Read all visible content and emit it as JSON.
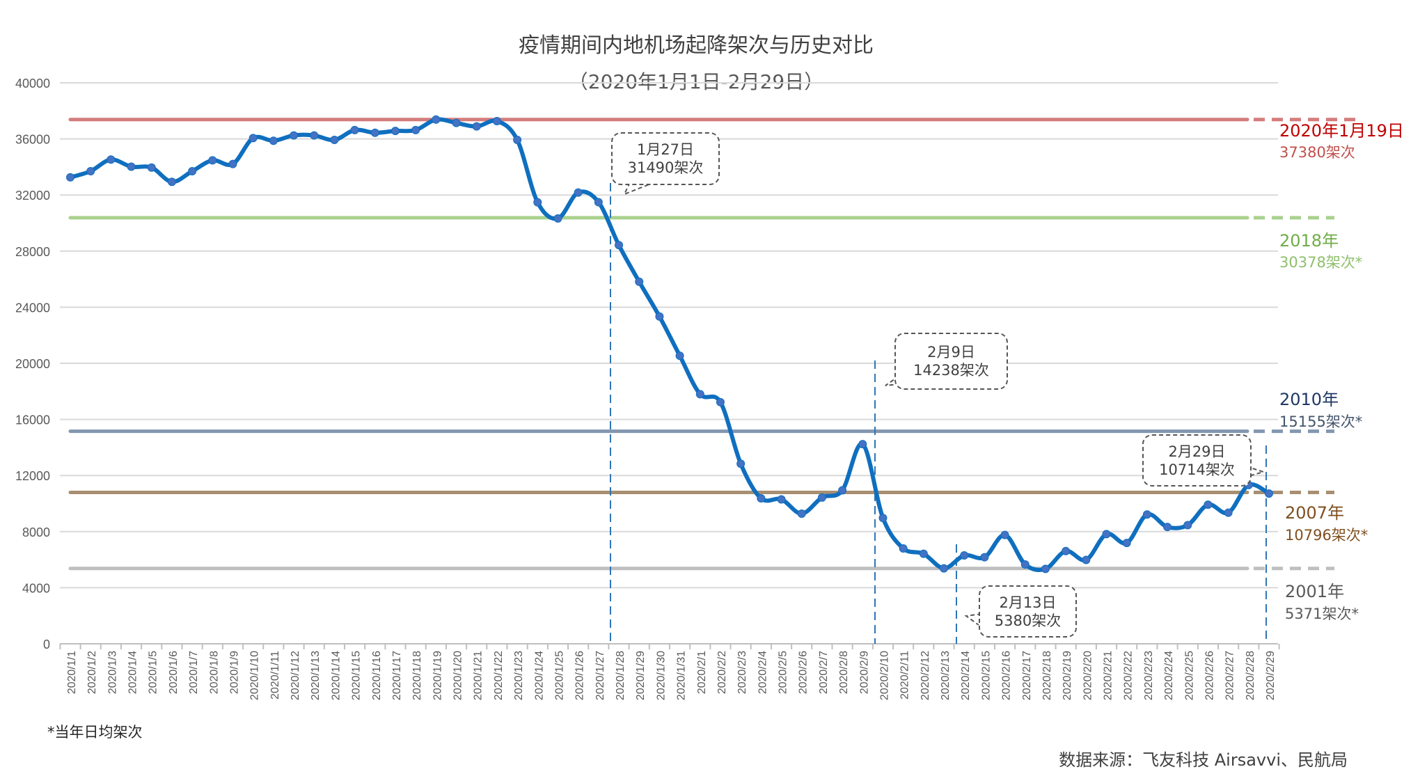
{
  "chart_data": {
    "type": "line",
    "title": "疫情期间内地机场起降架次与历史对比",
    "subtitle": "（2020年1月1日-2月29日）",
    "xlabel": "",
    "ylabel": "",
    "ylim": [
      0,
      40000
    ],
    "yticks": [
      0,
      4000,
      8000,
      12000,
      16000,
      20000,
      24000,
      28000,
      32000,
      36000,
      40000
    ],
    "grid": "horizontal",
    "categories": [
      "2020/1/1",
      "2020/1/2",
      "2020/1/3",
      "2020/1/4",
      "2020/1/5",
      "2020/1/6",
      "2020/1/7",
      "2020/1/8",
      "2020/1/9",
      "2020/1/10",
      "2020/1/11",
      "2020/1/12",
      "2020/1/13",
      "2020/1/14",
      "2020/1/15",
      "2020/1/16",
      "2020/1/17",
      "2020/1/18",
      "2020/1/19",
      "2020/1/20",
      "2020/1/21",
      "2020/1/22",
      "2020/1/23",
      "2020/1/24",
      "2020/1/25",
      "2020/1/26",
      "2020/1/27",
      "2020/1/28",
      "2020/1/29",
      "2020/1/30",
      "2020/1/31",
      "2020/2/1",
      "2020/2/2",
      "2020/2/3",
      "2020/2/4",
      "2020/2/5",
      "2020/2/6",
      "2020/2/7",
      "2020/2/8",
      "2020/2/9",
      "2020/2/10",
      "2020/2/11",
      "2020/2/12",
      "2020/2/13",
      "2020/2/14",
      "2020/2/15",
      "2020/2/16",
      "2020/2/17",
      "2020/2/18",
      "2020/2/19",
      "2020/2/20",
      "2020/2/21",
      "2020/2/22",
      "2020/2/23",
      "2020/2/24",
      "2020/2/25",
      "2020/2/26",
      "2020/2/27",
      "2020/2/28",
      "2020/2/29"
    ],
    "series": [
      {
        "values": [
          33260,
          33700,
          34530,
          34020,
          33960,
          32940,
          33700,
          34470,
          34210,
          36060,
          35870,
          36250,
          36250,
          35930,
          36630,
          36440,
          36570,
          36630,
          37380,
          37140,
          36890,
          37270,
          35930,
          31480,
          30330,
          32180,
          31490,
          28430,
          25820,
          23340,
          20540,
          17800,
          17230,
          12840,
          10370,
          10300,
          9280,
          10430,
          10940,
          14238,
          8970,
          6800,
          6420,
          5380,
          6300,
          6170,
          7760,
          5660,
          5340,
          6610,
          5980,
          7820,
          7190,
          9220,
          8330,
          8460,
          9920,
          9350,
          11320,
          10714
        ],
        "color": "#0f6fbf",
        "marker_color": "#4472c4"
      }
    ],
    "reference_lines": [
      {
        "label": "2020年1月19日",
        "value_text": "37380架次",
        "value": 37380,
        "color": "#d47c7c",
        "label_color": "#c00000",
        "text_color": "#c0504d"
      },
      {
        "label": "2018年",
        "value_text": "30378架次*",
        "value": 30378,
        "color": "#a9d18e",
        "label_color": "#70ad47",
        "text_color": "#8fbf6c"
      },
      {
        "label": "2010年",
        "value_text": "15155架次*",
        "value": 15155,
        "color": "#8497b0",
        "label_color": "#1f3864",
        "text_color": "#44546a"
      },
      {
        "label": "2007年",
        "value_text": "10796架次*",
        "value": 10796,
        "color": "#a88f72",
        "label_color": "#7f4f1f",
        "text_color": "#7f4f1f"
      },
      {
        "label": "2001年",
        "value_text": "5371架次*",
        "value": 5371,
        "color": "#bfbfbf",
        "label_color": "#595959",
        "text_color": "#595959"
      }
    ],
    "annotations": [
      {
        "date": "1月27日",
        "text": "31490架次",
        "at": "2020/1/27"
      },
      {
        "date": "2月9日",
        "text": "14238架次",
        "at": "2020/2/9"
      },
      {
        "date": "2月13日",
        "text": "5380架次",
        "at": "2020/2/13"
      },
      {
        "date": "2月29日",
        "text": "10714架次",
        "at": "2020/2/29"
      }
    ],
    "footnote": "*当年日均架次",
    "source": "数据来源：飞友科技 Airsavvi、民航局"
  }
}
